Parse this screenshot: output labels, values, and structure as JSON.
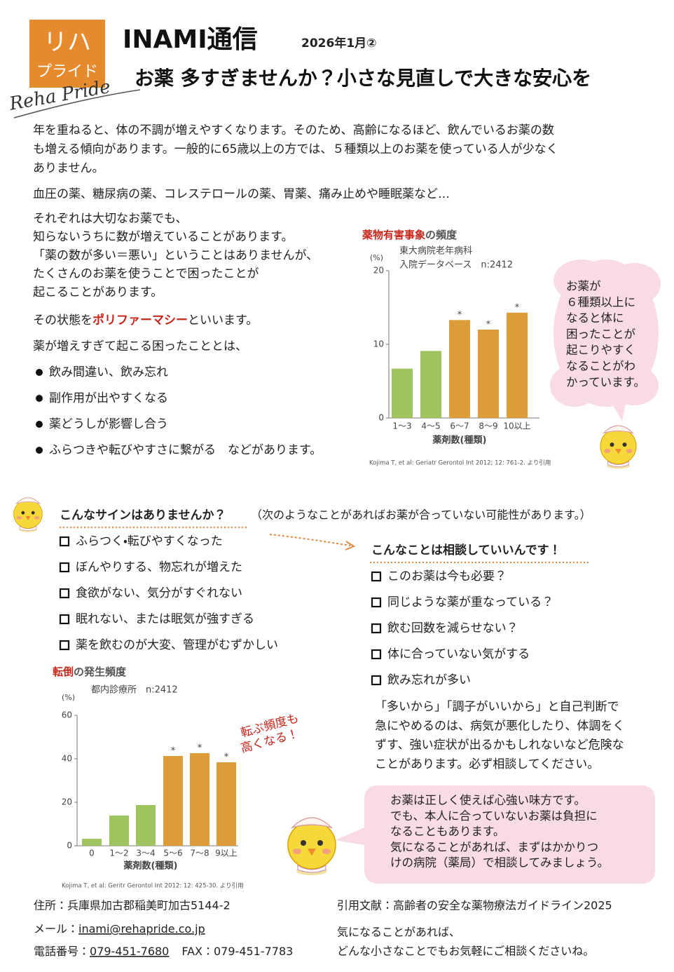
{
  "header": {
    "logo": {
      "line1": "リハ",
      "line2": "プライド",
      "script": "Reha Pride"
    },
    "title": "INAMI通信",
    "issue": "2026年1月②",
    "headline": "お薬 多すぎませんか？小さな見直しで大きな安心を"
  },
  "intro": {
    "paragraph1": [
      "年を重ねると、体の不調が増えやすくなります。そのため、高齢になるほど、飲んでいるお薬の数",
      "も増える傾向があります。一般的に65歳以上の方では、５種類以上のお薬を使っている人が少なく",
      "ありません。"
    ],
    "paragraph2": [
      "血圧の薬、糖尿病の薬、コレステロールの薬、胃薬、痛み止めや睡眠薬など…"
    ],
    "paragraph3": [
      "それぞれは大切なお薬でも、",
      "知らないうちに数が増えていることがあります。",
      "「薬の数が多い＝悪い」ということはありませんが、",
      "たくさんのお薬を使うことで困ったことが",
      "起こることがあります。"
    ],
    "polypharmacy": {
      "before": "その状態を",
      "term": "ポリファーマシー",
      "after": "といいます。"
    },
    "problems_lead": "薬が増えすぎて起こる困ったこととは、",
    "problems": [
      "飲み間違い、飲み忘れ",
      "副作用が出やすくなる",
      "薬どうしが影響し合う",
      "ふらつきや転びやすさに繋がる　などがあります。"
    ]
  },
  "bubble_top": [
    "お薬が",
    "６種類以上に",
    "なると体に",
    "困ったことが",
    "起こりやすく",
    "なることがわ",
    "かっています。"
  ],
  "signs": {
    "heading": "こんなサインはありませんか？",
    "note": "（次のようなことがあればお薬が合っていない可能性があります。）",
    "items": [
      "ふらつく・転びやすくなった",
      "ぼんやりする、物忘れが増えた",
      "食欲がない、気分がすぐれない",
      "眠れない、または眠気が強すぎる",
      "薬を飲むのが大変、管理がむずかしい"
    ]
  },
  "consult": {
    "heading": "こんなことは相談していいんです！",
    "items": [
      "このお薬は今も必要？",
      "同じような薬が重なっている？",
      "飲む回数を減らせない？",
      "体に合っていない気がする",
      "飲み忘れが多い"
    ],
    "warning": [
      "「多いから」「調子がいいから」と自己判断で",
      "急にやめるのは、病気が悪化したり、体調をく",
      "ずす、強い症状が出るかもしれないなど危険な",
      "ことがあります。必ず相談してください。"
    ]
  },
  "bubble_bottom": [
    "お薬は正しく使えば心強い味方です。",
    "でも、本人に合っていないお薬は負担に",
    "なることもあります。",
    "気になることがあれば、まずはかかりつ",
    "けの病院（薬局）で相談してみましょう。"
  ],
  "footer": {
    "address": "住所：兵庫県加古郡稲美町加古5144-2",
    "email_label": "メール：",
    "email": "inami@rehapride.co.jp",
    "phone_label": "電話番号：",
    "phone": "079-451-7680",
    "fax": "FAX：079-451-7783",
    "reference": "引用文献：高齢者の安全な薬物療法ガイドライン2025",
    "closing": [
      "気になることがあれば、",
      "どんな小さなことでもお気軽にご相談くださいね。"
    ]
  },
  "chart_data": [
    {
      "type": "bar",
      "title": {
        "highlight": "薬物有害事象",
        "rest": "の頻度"
      },
      "subtitle": [
        "東大病院老年病科",
        "入院データベース　n:2412"
      ],
      "y_unit": "(%)",
      "x_label": "薬剤数(種類)",
      "categories": [
        "1～3",
        "4～5",
        "6～7",
        "8～9",
        "10以上"
      ],
      "values": [
        6.7,
        9.1,
        13.3,
        12.0,
        14.3
      ],
      "colors": [
        "#9dc45f",
        "#9dc45f",
        "#dc9c37",
        "#dc9c37",
        "#dc9c37"
      ],
      "significance": [
        null,
        null,
        "*",
        "*",
        "*"
      ],
      "ylim": [
        0,
        20
      ],
      "yticks": [
        0,
        10,
        20
      ],
      "source": "Kojima T, et al: Geriatr Gerontol Int 2012; 12: 761-2. より引用"
    },
    {
      "type": "bar",
      "title": {
        "highlight": "転倒",
        "rest": "の発生頻度"
      },
      "subtitle": [
        "都内診療所　n:2412"
      ],
      "y_unit": "(%)",
      "x_label": "薬剤数(種類)",
      "categories": [
        "0",
        "1～2",
        "3～4",
        "5～6",
        "7～8",
        "9以上"
      ],
      "values": [
        3.2,
        13.9,
        18.7,
        41.3,
        42.6,
        38.4
      ],
      "colors": [
        "#9dc45f",
        "#9dc45f",
        "#9dc45f",
        "#dc9c37",
        "#dc9c37",
        "#dc9c37"
      ],
      "significance": [
        null,
        null,
        null,
        "*",
        "*",
        "*"
      ],
      "ylim": [
        0,
        60
      ],
      "yticks": [
        0,
        20,
        40,
        60
      ],
      "annotation": [
        "転ぶ頻度も",
        "高くなる！"
      ],
      "source": "Kojima T, et al: Geritr Gerontol Int 2012: 12: 425-30. より引用"
    }
  ]
}
